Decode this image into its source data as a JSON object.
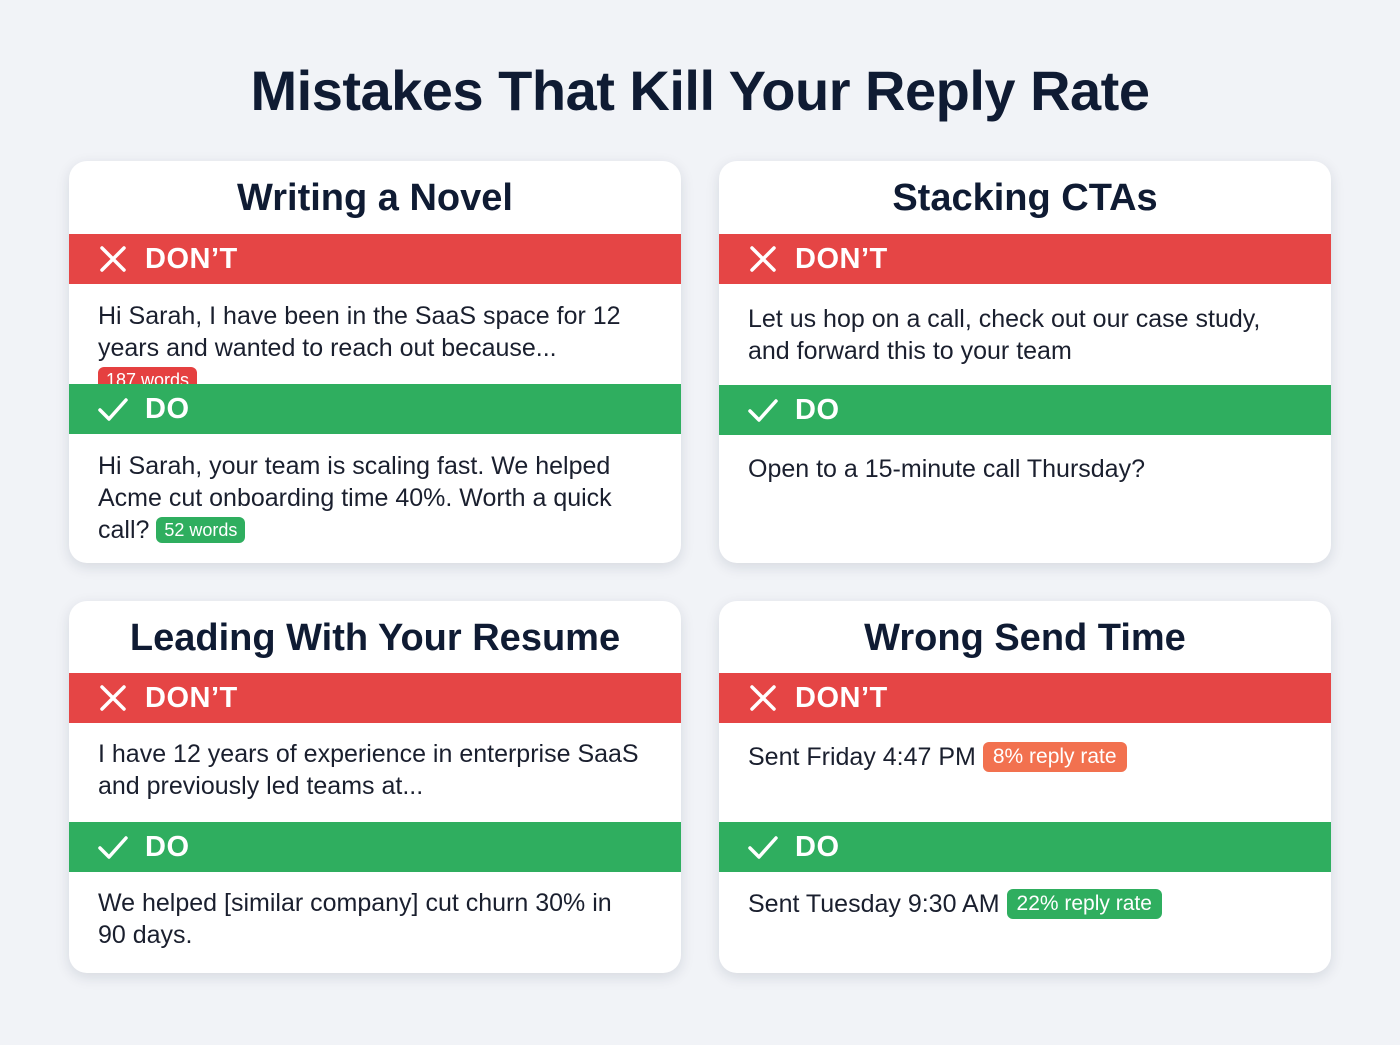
{
  "title": "Mistakes That Kill Your Reply Rate",
  "labels": {
    "dont": "DON’T",
    "do": "DO"
  },
  "colors": {
    "dont": "#e54545",
    "do": "#2fae5f",
    "badge_bad": "#f2714f"
  },
  "cards": [
    {
      "title": "Writing a Novel",
      "dont_text": "Hi Sarah, I have been in the SaaS space for 12 years and wanted to reach out because...",
      "dont_badge": "187 words",
      "do_text": "Hi Sarah, your team is scaling fast. We helped Acme cut onboarding time 40%. Worth a quick call?",
      "do_badge": "52 words"
    },
    {
      "title": "Stacking CTAs",
      "dont_text": "Let us hop on a call, check out our case study, and forward this to your team",
      "do_text": "Open to a 15-minute call Thursday?"
    },
    {
      "title": "Leading With Your Resume",
      "dont_text": "I have 12 years of experience in enterprise SaaS and previously led teams at...",
      "do_text": "We helped [similar company] cut churn 30% in 90 days."
    },
    {
      "title": "Wrong Send Time",
      "dont_text": "Sent Friday 4:47 PM",
      "dont_badge": "8% reply rate",
      "do_text": "Sent Tuesday 9:30 AM",
      "do_badge": "22% reply rate"
    }
  ]
}
